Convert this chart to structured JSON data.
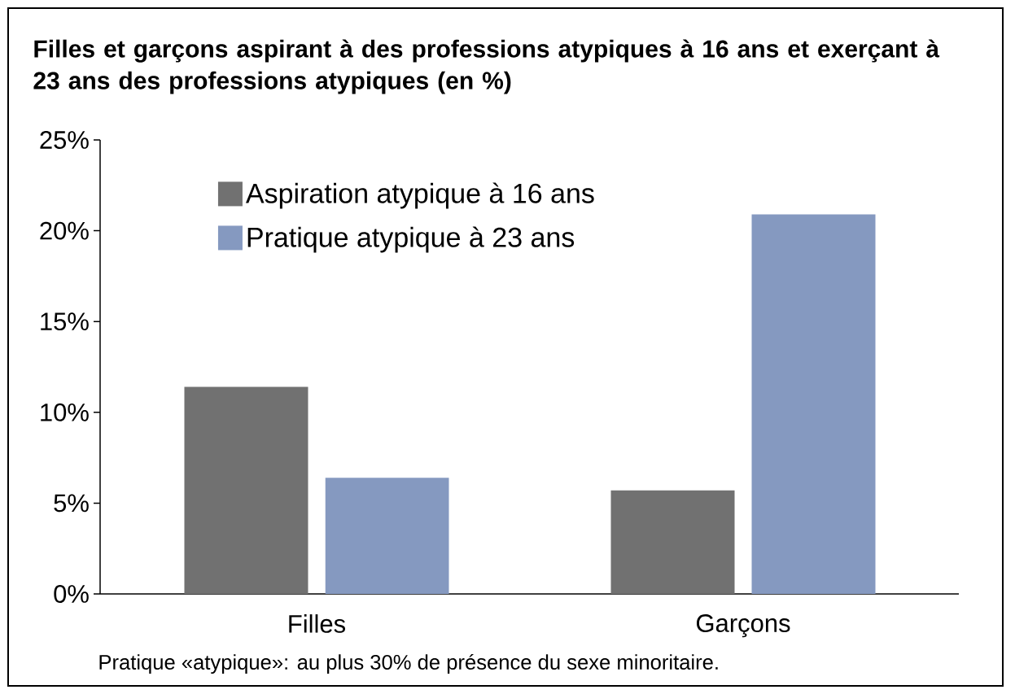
{
  "chart_data": {
    "type": "bar",
    "title": "Filles et garçons aspirant à des professions atypiques à 16 ans et exerçant à 23 ans des professions atypiques (en %)",
    "categories": [
      "Filles",
      "Garçons"
    ],
    "series": [
      {
        "name": "Aspiration atypique à 16 ans",
        "color": "#717171",
        "values": [
          11.4,
          5.7
        ]
      },
      {
        "name": "Pratique atypique à 23 ans",
        "color": "#8599c0",
        "values": [
          6.4,
          20.9
        ]
      }
    ],
    "ylim": [
      0,
      25
    ],
    "yticks": [
      {
        "value": 0,
        "label": "0%"
      },
      {
        "value": 5,
        "label": "5%"
      },
      {
        "value": 10,
        "label": "10%"
      },
      {
        "value": 15,
        "label": "15%"
      },
      {
        "value": 20,
        "label": "20%"
      },
      {
        "value": 25,
        "label": "25%"
      }
    ],
    "legend": "top left",
    "annotations": [
      "Pratique «atypique»: au plus 30% de présence du sexe minoritaire."
    ]
  }
}
